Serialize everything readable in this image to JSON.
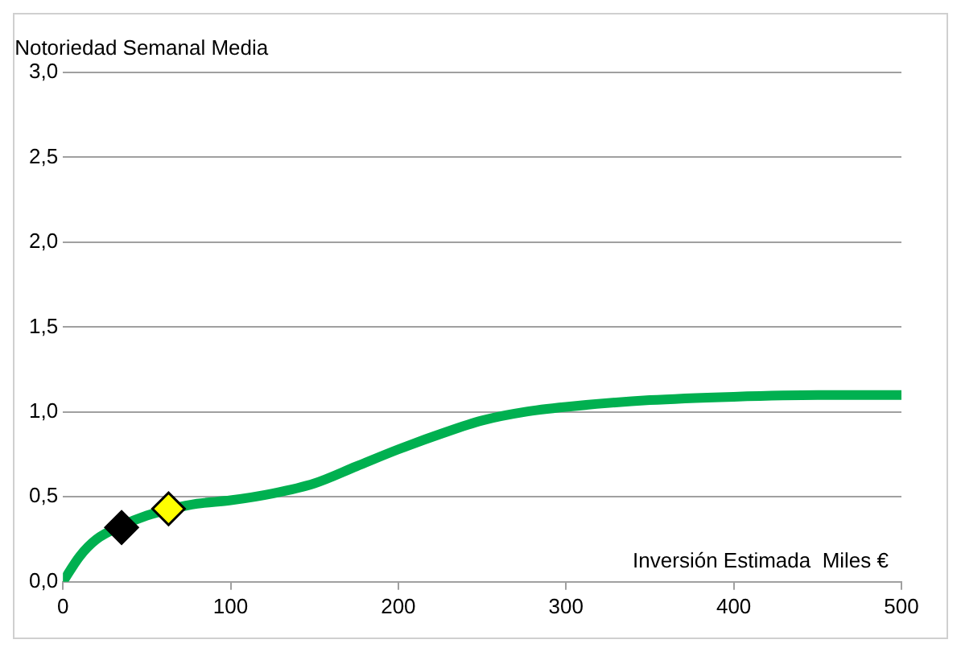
{
  "chart_data": {
    "type": "line",
    "xlabel": "Inversión Estimada  Miles €",
    "ylabel": "Notoriedad Semanal Media",
    "xlim": [
      0,
      500
    ],
    "xticks": [
      0,
      100,
      200,
      300,
      400,
      500
    ],
    "ylim": [
      0,
      3
    ],
    "yticks": [
      {
        "value": 0,
        "label": "0,0"
      },
      {
        "value": 0.5,
        "label": "0,5"
      },
      {
        "value": 1,
        "label": "1,0"
      },
      {
        "value": 1.5,
        "label": "1,5"
      },
      {
        "value": 2,
        "label": "2,0"
      },
      {
        "value": 2.5,
        "label": "2,5"
      },
      {
        "value": 3,
        "label": "3,0"
      }
    ],
    "grid": "y",
    "legend": false,
    "marker": "none",
    "series": [
      {
        "color": "#00b050",
        "x": [
          0,
          10,
          20,
          35,
          50,
          65,
          80,
          100,
          125,
          150,
          175,
          200,
          225,
          250,
          275,
          300,
          350,
          400,
          450,
          500
        ],
        "values": [
          0,
          0.15,
          0.25,
          0.33,
          0.39,
          0.43,
          0.46,
          0.48,
          0.52,
          0.58,
          0.68,
          0.78,
          0.87,
          0.95,
          1.0,
          1.03,
          1.07,
          1.09,
          1.1,
          1.1
        ]
      },
      {
        "type": "scatter",
        "marker": "diamond",
        "color": "#000000",
        "x": [
          35
        ],
        "values": [
          0.32
        ]
      },
      {
        "type": "scatter",
        "marker": "diamond",
        "color": "#ffff00",
        "x": [
          63
        ],
        "values": [
          0.43
        ]
      }
    ]
  }
}
